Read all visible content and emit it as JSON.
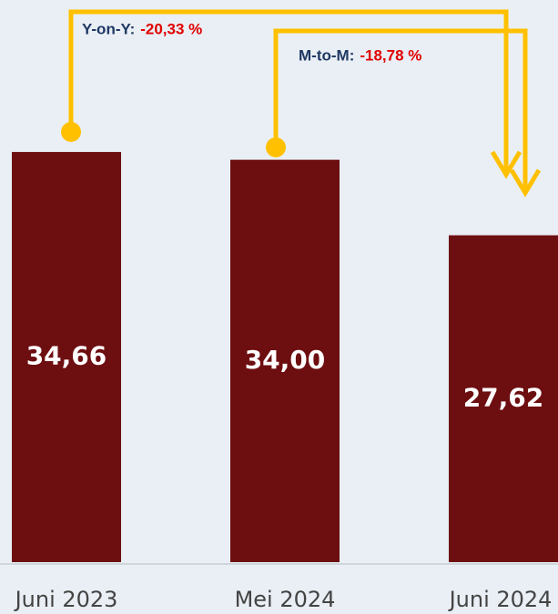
{
  "chart_data": {
    "type": "bar",
    "categories": [
      "Juni 2023",
      "Mei 2024",
      "Juni 2024"
    ],
    "values": [
      34.66,
      34.0,
      27.62
    ],
    "value_labels": [
      "34,66",
      "34,00",
      "27,62"
    ],
    "color": "#6d0e10",
    "ylim": [
      0,
      47.5
    ],
    "annotations": [
      {
        "label": "Y-on-Y:",
        "text": "-20,33 %"
      },
      {
        "label": "M-to-M:",
        "text": "-18,78 %"
      }
    ]
  }
}
